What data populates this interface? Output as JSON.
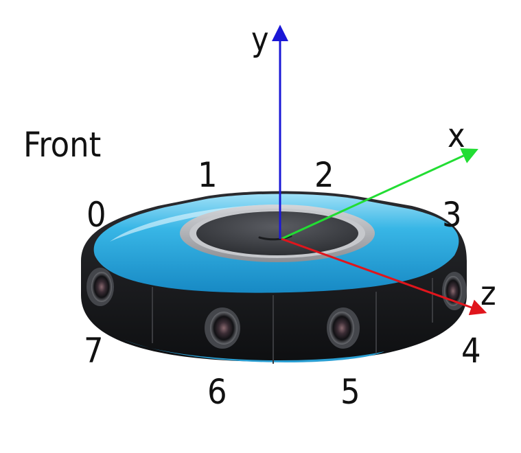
{
  "front_label": "Front",
  "lens_numbers": [
    "0",
    "1",
    "2",
    "3",
    "4",
    "5",
    "6",
    "7"
  ],
  "axes": {
    "x": {
      "label": "x",
      "color": "#22dd33"
    },
    "y": {
      "label": "y",
      "color": "#1a17d6"
    },
    "z": {
      "label": "z",
      "color": "#e0151c"
    }
  },
  "colors": {
    "camera_shell": "#2aaee0",
    "camera_body": "#1b1c1f",
    "ring": "#a7a9ad",
    "center_button": "#3a3c41"
  },
  "icons": [
    "camera-body",
    "lens"
  ]
}
